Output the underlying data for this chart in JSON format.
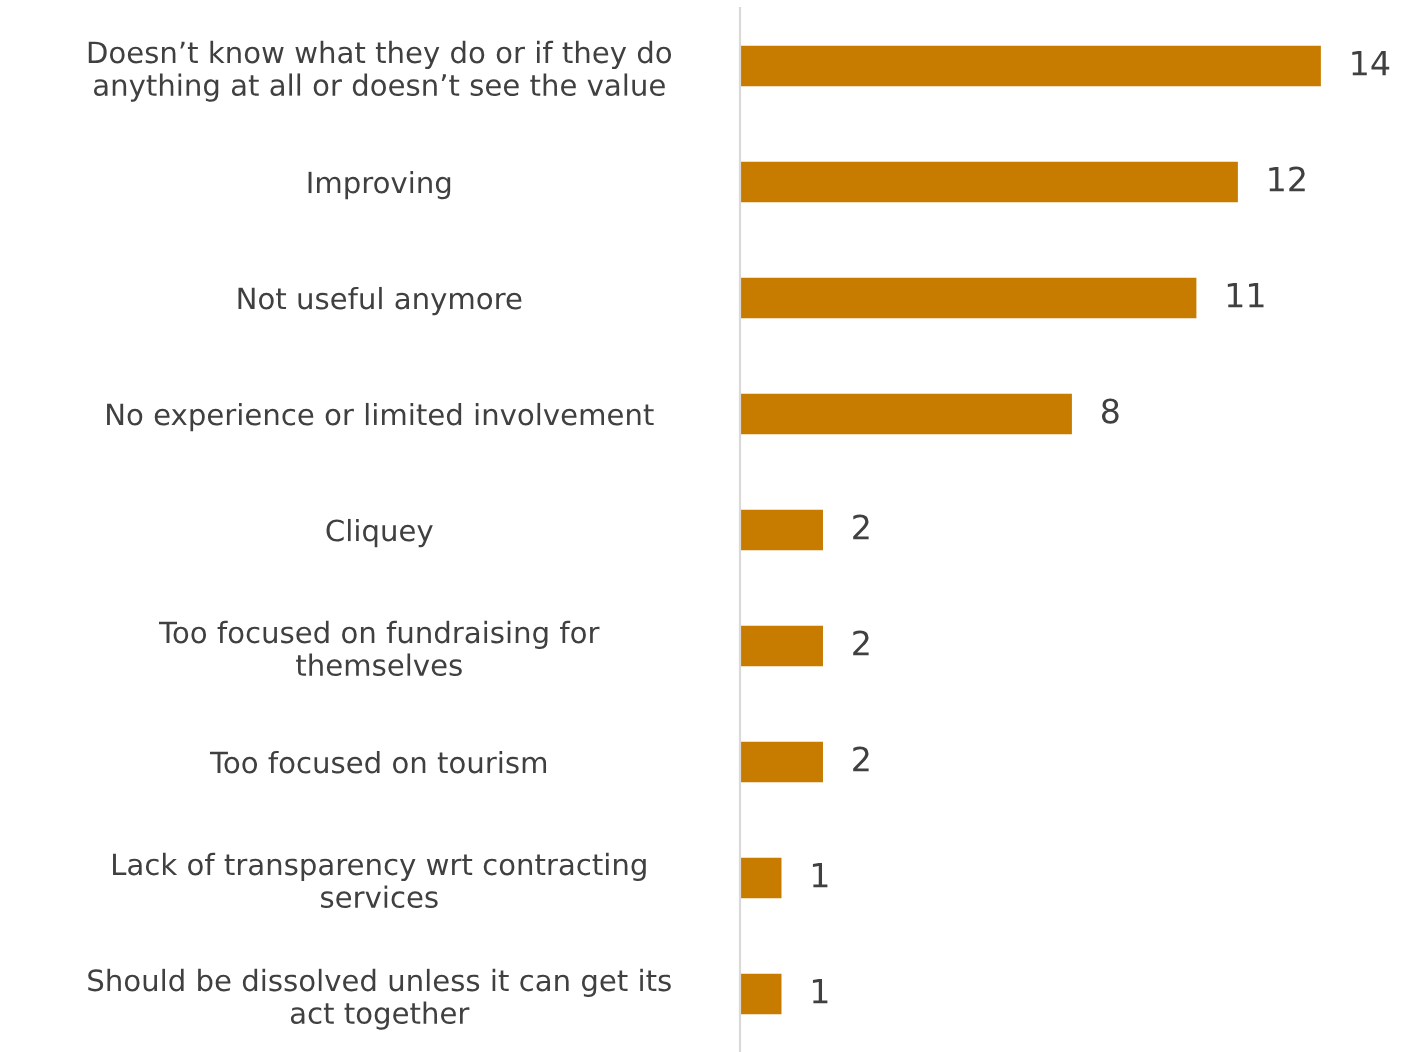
{
  "chart_data": {
    "type": "bar",
    "orientation": "horizontal",
    "data_labels": true,
    "color": "#c77c00",
    "categories": [
      "Doesn’t know what they do or if they do\nanything at all or doesn’t see the value",
      "Improving",
      "Not useful anymore",
      "No experience or limited involvement",
      "Cliquey",
      "Too focused on fundraising for\nthemselves",
      "Too focused on tourism",
      "Lack of transparency wrt contracting\nservices",
      "Should be dissolved unless it can get its\nact together"
    ],
    "values": [
      14,
      12,
      11,
      8,
      2,
      2,
      2,
      1,
      1
    ],
    "grid": false,
    "legend": false
  }
}
